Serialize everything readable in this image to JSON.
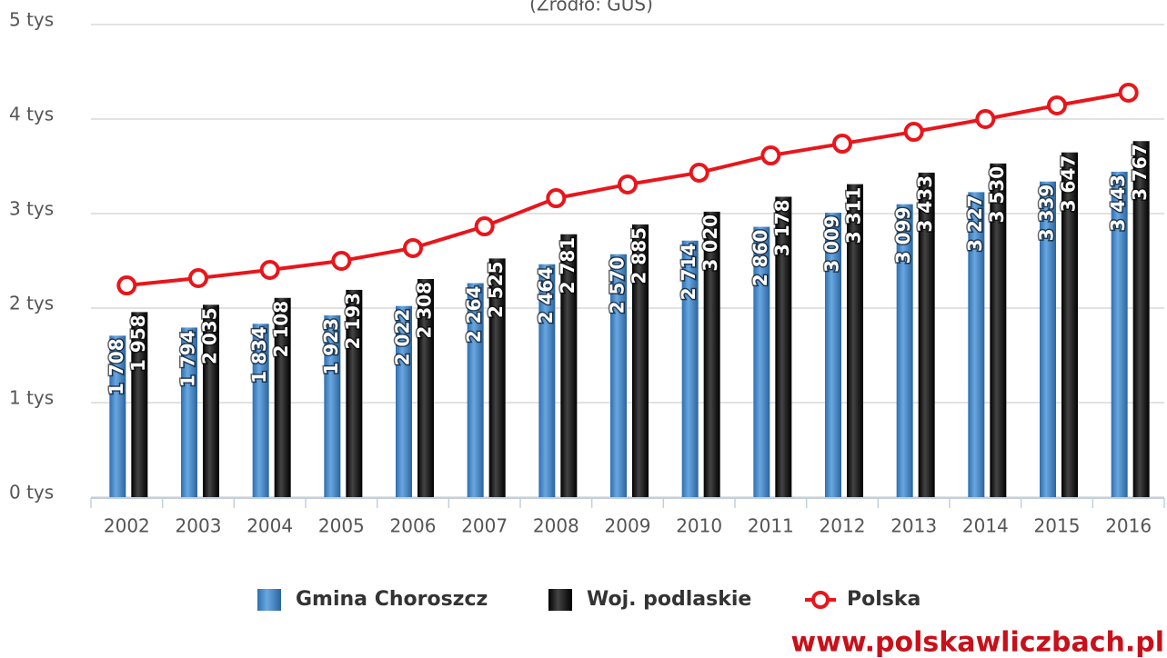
{
  "chart_data": {
    "type": "bar",
    "subtitle": "(Źródło: GUS)",
    "annotation": "www.polskawliczbach.pl",
    "categories": [
      "2002",
      "2003",
      "2004",
      "2005",
      "2006",
      "2007",
      "2008",
      "2009",
      "2010",
      "2011",
      "2012",
      "2013",
      "2014",
      "2015",
      "2016"
    ],
    "series": [
      {
        "name": "Gmina Choroszcz",
        "color": "#4a8fd0",
        "type": "bar",
        "values": [
          1708,
          1794,
          1834,
          1923,
          2022,
          2264,
          2464,
          2570,
          2714,
          2860,
          3009,
          3099,
          3227,
          3339,
          3443
        ],
        "value_labels": [
          "1 708",
          "1 794",
          "1 834",
          "1 923",
          "2 022",
          "2 264",
          "2 464",
          "2 570",
          "2 714",
          "2 860",
          "3 009",
          "3 099",
          "3 227",
          "3 339",
          "3 443"
        ]
      },
      {
        "name": "Woj. podlaskie",
        "color": "#111111",
        "type": "bar",
        "values": [
          1958,
          2035,
          2108,
          2193,
          2308,
          2525,
          2781,
          2885,
          3020,
          3178,
          3311,
          3433,
          3530,
          3647,
          3767
        ],
        "value_labels": [
          "1 958",
          "2 035",
          "2 108",
          "2 193",
          "2 308",
          "2 525",
          "2 781",
          "2 885",
          "3 020",
          "3 178",
          "3 311",
          "3 433",
          "3 530",
          "3 647",
          "3 767"
        ]
      },
      {
        "name": "Polska",
        "color": "#e8161b",
        "type": "line",
        "values": [
          2240,
          2317,
          2404,
          2500,
          2635,
          2865,
          3163,
          3308,
          3433,
          3615,
          3740,
          3865,
          4000,
          4144,
          4279
        ]
      }
    ],
    "ylim": [
      0,
      5000
    ],
    "yticks": [
      {
        "value": 0,
        "label": "0 tys"
      },
      {
        "value": 1000,
        "label": "1 tys"
      },
      {
        "value": 2000,
        "label": "2 tys"
      },
      {
        "value": 3000,
        "label": "3 tys"
      },
      {
        "value": 4000,
        "label": "4 tys"
      },
      {
        "value": 5000,
        "label": "5 tys"
      }
    ],
    "grid": true,
    "legend": "bottom"
  }
}
